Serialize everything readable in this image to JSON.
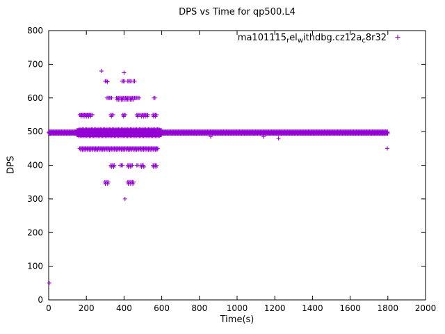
{
  "window": {
    "background": "#ffffff"
  },
  "chart_data": {
    "type": "scatter",
    "title": "DPS vs Time for qp500.L4",
    "xlabel": "Time(s)",
    "ylabel": "DPS",
    "xlim": [
      0,
      2000
    ],
    "ylim": [
      0,
      800
    ],
    "x_ticks": [
      0,
      200,
      400,
      600,
      800,
      1000,
      1200,
      1400,
      1600,
      1800,
      2000
    ],
    "y_ticks": [
      0,
      100,
      200,
      300,
      400,
      500,
      600,
      700,
      800
    ],
    "grid": false,
    "marker": "plus",
    "color": "#9400d3",
    "legend": {
      "position": "top-right-inside",
      "segments": [
        {
          "text": "ma101115"
        },
        {
          "text": "r",
          "sub": true
        },
        {
          "text": "el"
        },
        {
          "text": "w",
          "sub": true
        },
        {
          "text": "ithdbg.cz12a"
        },
        {
          "text": "c",
          "sub": true
        },
        {
          "text": "8r32"
        }
      ]
    },
    "series": [
      {
        "name": "ma101115_rel_withdbg.cz12a_c8r32",
        "bands": [
          {
            "y": 497,
            "x0": 2,
            "x1": 1800,
            "step": 4
          },
          {
            "y": 494,
            "x0": 4,
            "x1": 1800,
            "step": 5
          },
          {
            "y": 500,
            "x0": 3,
            "x1": 1799,
            "step": 5
          },
          {
            "y": 490,
            "x0": 150,
            "x1": 600,
            "step": 4
          },
          {
            "y": 504,
            "x0": 150,
            "x1": 600,
            "step": 4
          },
          {
            "y": 487,
            "x0": 160,
            "x1": 590,
            "step": 7
          },
          {
            "y": 507,
            "x0": 162,
            "x1": 588,
            "step": 8
          },
          {
            "y": 450,
            "x0": 164,
            "x1": 582,
            "step": 5
          },
          {
            "y": 446,
            "x0": 170,
            "x1": 575,
            "step": 9
          }
        ],
        "rows": [
          {
            "y": 680,
            "x": [
              280
            ]
          },
          {
            "y": 675,
            "x": [
              400
            ]
          },
          {
            "y": 650,
            "x": [
              300,
              306,
              390,
              396,
              402,
              420,
              426,
              432,
              438,
              450,
              456
            ]
          },
          {
            "y": 648,
            "x": [
              312
            ]
          },
          {
            "y": 600,
            "x": [
              310,
              316,
              322,
              328,
              334,
              360,
              366,
              372,
              378,
              384,
              390,
              396,
              402,
              408,
              414,
              420,
              426,
              432,
              438,
              444,
              450,
              456,
              462,
              468,
              474,
              480,
              558,
              564
            ]
          },
          {
            "y": 595,
            "x": [
              362,
              370,
              378,
              386,
              394,
              402,
              410,
              418,
              426,
              434,
              442,
              450
            ]
          },
          {
            "y": 550,
            "x": [
              165,
              170,
              175,
              180,
              185,
              190,
              195,
              200,
              205,
              210,
              215,
              220,
              225,
              232,
              330,
              336,
              342,
              394,
              400,
              406,
              468,
              474,
              480,
              490,
              496,
              502,
              508,
              514,
              520,
              526,
              554,
              560,
              566,
              572
            ]
          },
          {
            "y": 545,
            "x": [
              172,
              182,
              192,
              202,
              212,
              222,
              333,
              398,
              472,
              493,
              503,
              513,
              523,
              557,
              567
            ]
          },
          {
            "y": 400,
            "x": [
              330,
              336,
              342,
              348,
              380,
              386,
              392,
              420,
              426,
              432,
              438,
              444,
              468,
              474,
              490,
              496,
              502,
              554,
              560,
              566,
              572
            ]
          },
          {
            "y": 395,
            "x": [
              333,
              345,
              423,
              435,
              493,
              505,
              557,
              569
            ]
          },
          {
            "y": 350,
            "x": [
              298,
              304,
              310,
              316,
              420,
              426,
              432,
              438,
              444,
              450
            ]
          },
          {
            "y": 345,
            "x": [
              301,
              313,
              423,
              435,
              447
            ]
          }
        ],
        "points": [
          [
            405,
            300
          ],
          [
            3,
            50
          ],
          [
            860,
            485
          ],
          [
            1140,
            485
          ],
          [
            1220,
            480
          ],
          [
            1797,
            450
          ]
        ]
      }
    ]
  }
}
